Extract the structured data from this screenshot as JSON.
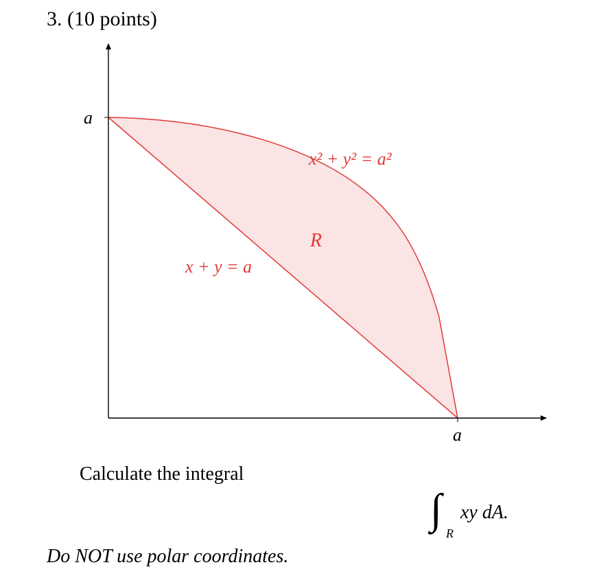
{
  "problem": {
    "heading": "3. (10 points)"
  },
  "figure": {
    "axis_labels": {
      "y_tick": "a",
      "x_tick": "a"
    },
    "curve_label": "x² + y² = a²",
    "line_label": "x + y = a",
    "region_label": "R",
    "colors": {
      "curve": "#e03a3a",
      "fill": "#fbe4e4",
      "axes": "#000000"
    }
  },
  "question": {
    "prompt": "Calculate the integral",
    "integral_symbol": "∫",
    "integral_subscript": "R",
    "integrand": "xy dA.",
    "instruction": "Do NOT use polar coordinates."
  }
}
